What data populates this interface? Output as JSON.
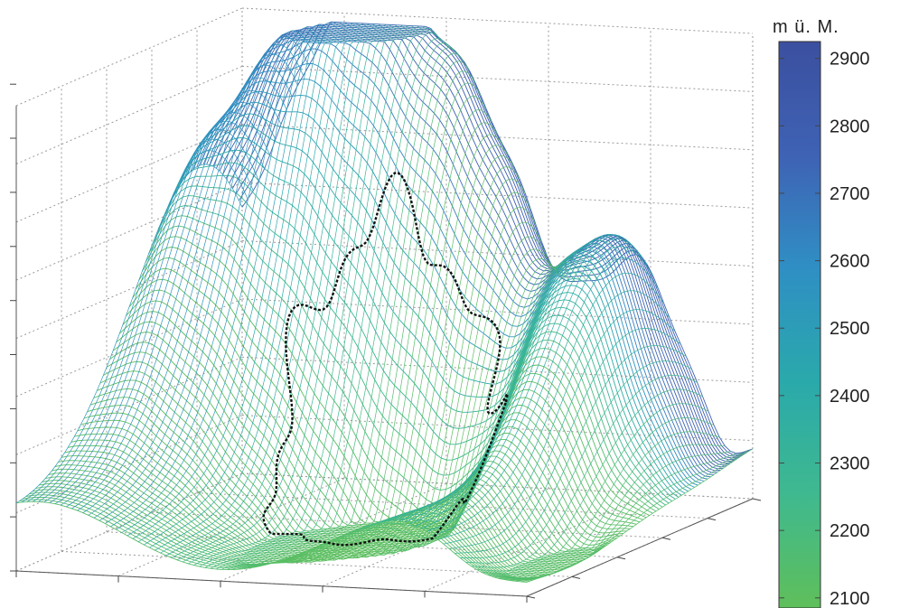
{
  "chart_data": {
    "type": "surface",
    "title": "",
    "xlabel": "",
    "ylabel": "",
    "zlabel": "",
    "colorbar": {
      "unit_label": "m ü. M.",
      "ticks": [
        "2100",
        "2200",
        "2300",
        "2400",
        "2500",
        "2600",
        "2700",
        "2800",
        "2900"
      ],
      "range": [
        2085,
        2925
      ],
      "colormap": [
        "#5fbf5a",
        "#3fb98f",
        "#2aa9ab",
        "#2f8fc4",
        "#3f62b4",
        "#3b4f9f"
      ]
    },
    "z_range": [
      2085,
      2925
    ],
    "grid": true,
    "boundary_line_color": "#111111",
    "mesh_style": "wireframe"
  }
}
